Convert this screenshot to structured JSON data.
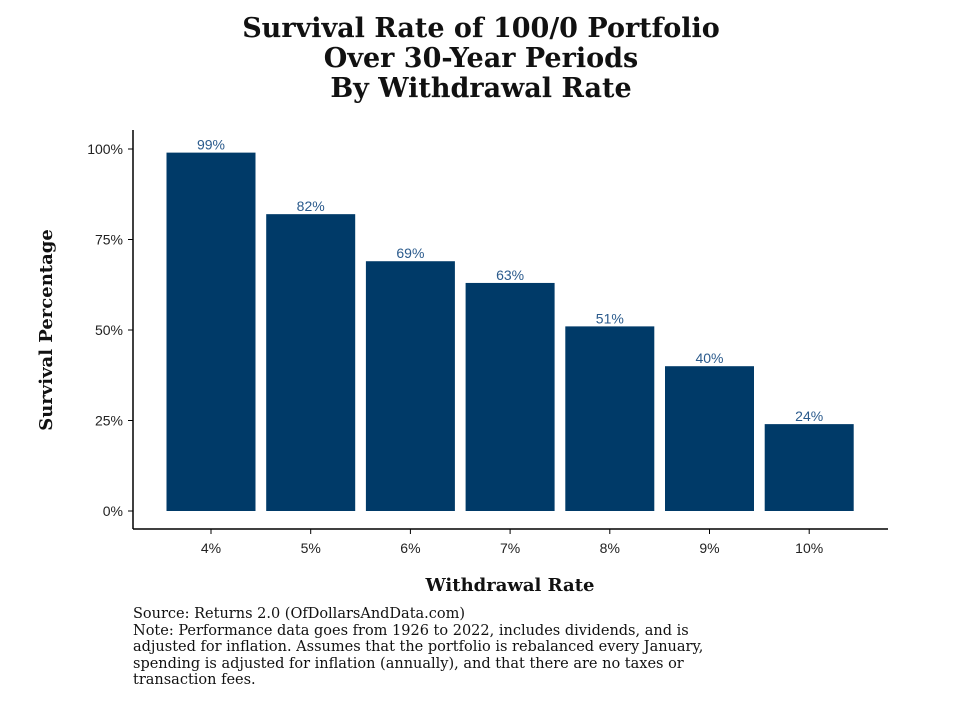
{
  "chart_data": {
    "type": "bar",
    "title_lines": [
      "Survival Rate of 100/0 Portfolio",
      "Over 30-Year Periods",
      "By Withdrawal Rate"
    ],
    "xlabel": "Withdrawal Rate",
    "ylabel": "Survival Percentage",
    "categories": [
      "4%",
      "5%",
      "6%",
      "7%",
      "8%",
      "9%",
      "10%"
    ],
    "values": [
      99,
      82,
      69,
      63,
      51,
      40,
      24
    ],
    "value_labels": [
      "99%",
      "82%",
      "69%",
      "63%",
      "51%",
      "40%",
      "24%"
    ],
    "ylim": [
      0,
      100
    ],
    "yticks": [
      0,
      25,
      50,
      75,
      100
    ],
    "ytick_labels": [
      "0%",
      "25%",
      "50%",
      "75%",
      "100%"
    ],
    "grid": false,
    "bar_color": "#003a68",
    "label_color": "#2a5a8c"
  },
  "source_lines": [
    "Source:  Returns 2.0 (OfDollarsAndData.com)",
    "Note: Performance data goes from 1926 to 2022, includes dividends, and is",
    "adjusted for inflation. Assumes that the portfolio is rebalanced every January,",
    "spending is adjusted for inflation (annually), and that there are no taxes or",
    "transaction fees."
  ]
}
